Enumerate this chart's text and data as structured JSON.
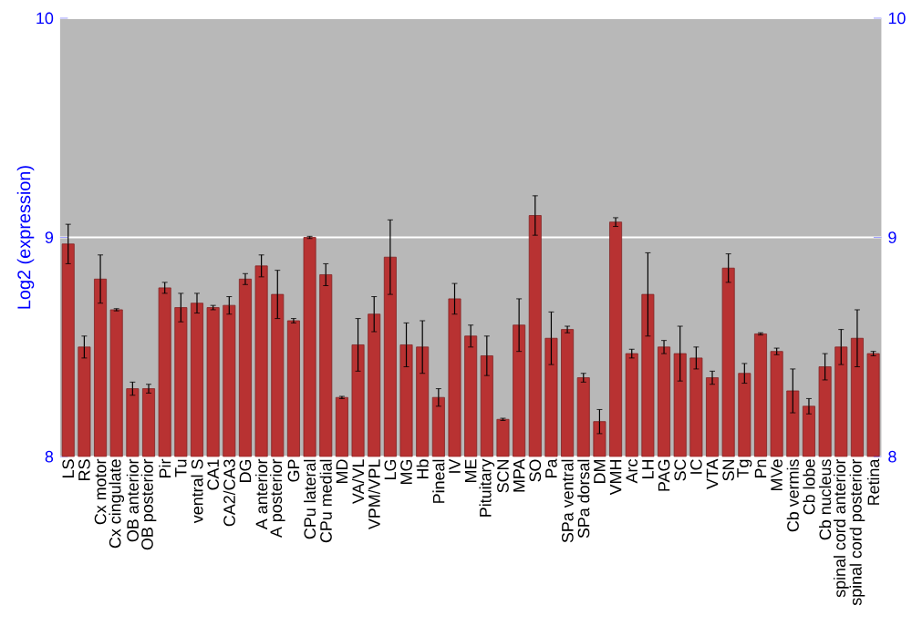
{
  "chart_data": {
    "type": "bar",
    "ylabel": "Log2 (expression)",
    "categories": [
      "LS",
      "RS",
      "Cx motor",
      "Cx cingulate",
      "OB anterior",
      "OB posterior",
      "Pir",
      "Tu",
      "ventral S",
      "CA1",
      "CA2/CA3",
      "DG",
      "A anterior",
      "A posterior",
      "GP",
      "CPu lateral",
      "CPu medial",
      "MD",
      "VA/VL",
      "VPM/VPL",
      "LG",
      "MG",
      "Hb",
      "Pineal",
      "IV",
      "ME",
      "Pituitary",
      "SCN",
      "MPA",
      "SO",
      "Pa",
      "SPa ventral",
      "SPa dorsal",
      "DM",
      "VMH",
      "Arc",
      "LH",
      "PAG",
      "SC",
      "IC",
      "VTA",
      "SN",
      "Tg",
      "Pn",
      "MVe",
      "Cb vermis",
      "Cb lobe",
      "Cb nucleus",
      "spinal cord anterior",
      "spinal cord posterior",
      "Retina"
    ],
    "values": [
      8.97,
      8.5,
      8.81,
      8.67,
      8.31,
      8.31,
      8.77,
      8.68,
      8.7,
      8.68,
      8.69,
      8.81,
      8.87,
      8.74,
      8.62,
      9.0,
      8.83,
      8.27,
      8.51,
      8.65,
      8.91,
      8.51,
      8.5,
      8.27,
      8.72,
      8.55,
      8.46,
      8.17,
      8.6,
      9.1,
      8.54,
      8.58,
      8.36,
      8.16,
      9.07,
      8.47,
      8.74,
      8.5,
      8.47,
      8.45,
      8.36,
      8.86,
      8.38,
      8.56,
      8.48,
      8.3,
      8.23,
      8.41,
      8.5,
      8.54,
      8.47
    ],
    "errors": [
      0.09,
      0.05,
      0.11,
      0.005,
      0.03,
      0.02,
      0.025,
      0.065,
      0.045,
      0.01,
      0.04,
      0.025,
      0.05,
      0.11,
      0.01,
      0.005,
      0.05,
      0.005,
      0.12,
      0.08,
      0.17,
      0.1,
      0.12,
      0.04,
      0.07,
      0.05,
      0.09,
      0.005,
      0.12,
      0.09,
      0.12,
      0.015,
      0.02,
      0.055,
      0.02,
      0.02,
      0.19,
      0.03,
      0.125,
      0.05,
      0.03,
      0.065,
      0.045,
      0.005,
      0.015,
      0.1,
      0.035,
      0.06,
      0.08,
      0.13,
      0.01
    ],
    "color": "#b83232",
    "ylim": [
      8,
      10
    ],
    "yticks": [
      8,
      9,
      10
    ],
    "y2lim": [
      8,
      10
    ],
    "y2ticks": [
      8,
      9,
      10
    ],
    "grid": "y"
  }
}
